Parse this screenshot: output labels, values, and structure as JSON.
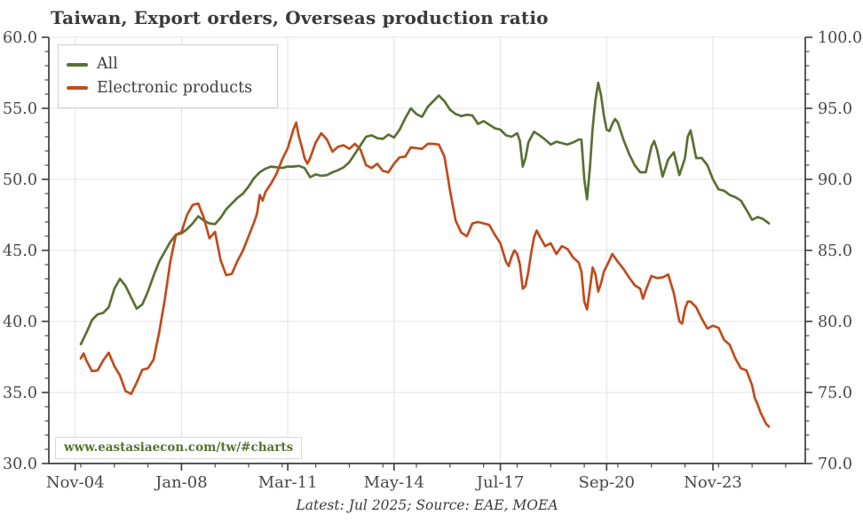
{
  "title": "Taiwan, Export orders, Overseas production ratio",
  "footer": "Latest: Jul 2025; Source: EAE, MOEA",
  "watermark": "www.eastasiaecon.com/tw/#charts",
  "colors": {
    "all_series": "#5a7033",
    "electronics_series": "#c04b1d",
    "grid": "#e3e3e3",
    "spine": "#3c3c3c",
    "tick_label": "#474747",
    "watermark_text": "#5a7033"
  },
  "chart_data": {
    "type": "line",
    "title": "Taiwan, Export orders, Overseas production ratio",
    "x_unit": "months since Jan-2005",
    "x_tick_labels": [
      "Nov-04",
      "Jan-08",
      "Mar-11",
      "May-14",
      "Jul-17",
      "Sep-20",
      "Nov-23"
    ],
    "x_tick_months": [
      -2,
      36,
      74,
      112,
      150,
      188,
      226
    ],
    "x_minor_tick_step_months": 12,
    "grid": true,
    "legend_position": "top-left",
    "left_axis": {
      "min": 30,
      "max": 60,
      "ticks": [
        30,
        35,
        40,
        45,
        50,
        55,
        60
      ],
      "minor_step": 1
    },
    "right_axis": {
      "min": 70,
      "max": 100,
      "ticks": [
        70,
        75,
        80,
        85,
        90,
        95,
        100
      ],
      "minor_step": 1
    },
    "series": [
      {
        "name": "All",
        "axis": "left",
        "color": "#5a7033",
        "points": [
          [
            0,
            38.4
          ],
          [
            2,
            39.2
          ],
          [
            4,
            40.1
          ],
          [
            6,
            40.5
          ],
          [
            8,
            40.6
          ],
          [
            10,
            41.0
          ],
          [
            12,
            42.3
          ],
          [
            14,
            43.0
          ],
          [
            16,
            42.5
          ],
          [
            18,
            41.7
          ],
          [
            20,
            40.9
          ],
          [
            22,
            41.2
          ],
          [
            24,
            42.1
          ],
          [
            26,
            43.2
          ],
          [
            28,
            44.2
          ],
          [
            30,
            44.9
          ],
          [
            32,
            45.6
          ],
          [
            34,
            46.1
          ],
          [
            36,
            46.2
          ],
          [
            38,
            46.5
          ],
          [
            40,
            46.9
          ],
          [
            42,
            47.4
          ],
          [
            44,
            47.1
          ],
          [
            46,
            46.9
          ],
          [
            48,
            46.85
          ],
          [
            50,
            47.3
          ],
          [
            52,
            47.9
          ],
          [
            54,
            48.3
          ],
          [
            56,
            48.7
          ],
          [
            58,
            49.0
          ],
          [
            60,
            49.5
          ],
          [
            62,
            50.1
          ],
          [
            64,
            50.5
          ],
          [
            66,
            50.75
          ],
          [
            68,
            50.9
          ],
          [
            70,
            50.85
          ],
          [
            72,
            50.8
          ],
          [
            74,
            50.9
          ],
          [
            76,
            50.9
          ],
          [
            78,
            50.95
          ],
          [
            80,
            50.8
          ],
          [
            82,
            50.15
          ],
          [
            84,
            50.35
          ],
          [
            86,
            50.25
          ],
          [
            88,
            50.3
          ],
          [
            90,
            50.5
          ],
          [
            92,
            50.65
          ],
          [
            94,
            50.85
          ],
          [
            96,
            51.2
          ],
          [
            98,
            51.8
          ],
          [
            100,
            52.4
          ],
          [
            102,
            53.0
          ],
          [
            104,
            53.1
          ],
          [
            106,
            52.9
          ],
          [
            108,
            52.85
          ],
          [
            110,
            53.15
          ],
          [
            112,
            52.95
          ],
          [
            114,
            53.5
          ],
          [
            116,
            54.3
          ],
          [
            118,
            55.0
          ],
          [
            120,
            54.6
          ],
          [
            122,
            54.4
          ],
          [
            124,
            55.1
          ],
          [
            126,
            55.5
          ],
          [
            128,
            55.9
          ],
          [
            130,
            55.5
          ],
          [
            132,
            54.9
          ],
          [
            134,
            54.6
          ],
          [
            136,
            54.45
          ],
          [
            138,
            54.55
          ],
          [
            140,
            54.5
          ],
          [
            142,
            53.9
          ],
          [
            144,
            54.1
          ],
          [
            146,
            53.85
          ],
          [
            148,
            53.6
          ],
          [
            150,
            53.5
          ],
          [
            152,
            53.1
          ],
          [
            154,
            53.0
          ],
          [
            156,
            53.25
          ],
          [
            157,
            52.7
          ],
          [
            158,
            50.9
          ],
          [
            159,
            51.5
          ],
          [
            160,
            52.6
          ],
          [
            162,
            53.35
          ],
          [
            164,
            53.1
          ],
          [
            166,
            52.8
          ],
          [
            168,
            52.45
          ],
          [
            170,
            52.65
          ],
          [
            172,
            52.55
          ],
          [
            174,
            52.45
          ],
          [
            176,
            52.6
          ],
          [
            178,
            52.8
          ],
          [
            179,
            52.8
          ],
          [
            180,
            50.0
          ],
          [
            181,
            48.6
          ],
          [
            182,
            50.8
          ],
          [
            183,
            53.6
          ],
          [
            184,
            55.6
          ],
          [
            185,
            56.8
          ],
          [
            186,
            55.9
          ],
          [
            187,
            54.5
          ],
          [
            188,
            53.5
          ],
          [
            189,
            53.4
          ],
          [
            190,
            53.9
          ],
          [
            191,
            54.25
          ],
          [
            192,
            54.0
          ],
          [
            194,
            52.8
          ],
          [
            196,
            51.8
          ],
          [
            198,
            51.0
          ],
          [
            200,
            50.5
          ],
          [
            202,
            50.5
          ],
          [
            204,
            52.3
          ],
          [
            205,
            52.7
          ],
          [
            206,
            52.1
          ],
          [
            208,
            50.2
          ],
          [
            210,
            51.4
          ],
          [
            212,
            51.9
          ],
          [
            214,
            50.3
          ],
          [
            216,
            51.5
          ],
          [
            217,
            53.0
          ],
          [
            218,
            53.45
          ],
          [
            220,
            51.5
          ],
          [
            222,
            51.5
          ],
          [
            224,
            51.0
          ],
          [
            226,
            50.0
          ],
          [
            228,
            49.3
          ],
          [
            230,
            49.2
          ],
          [
            232,
            48.9
          ],
          [
            234,
            48.75
          ],
          [
            236,
            48.5
          ],
          [
            238,
            47.85
          ],
          [
            240,
            47.15
          ],
          [
            242,
            47.35
          ],
          [
            244,
            47.2
          ],
          [
            246,
            46.9
          ]
        ]
      },
      {
        "name": "Electronic products",
        "axis": "left",
        "color": "#c04b1d",
        "points": [
          [
            0,
            37.4
          ],
          [
            1,
            37.75
          ],
          [
            2,
            37.25
          ],
          [
            4,
            36.5
          ],
          [
            6,
            36.55
          ],
          [
            8,
            37.25
          ],
          [
            10,
            37.8
          ],
          [
            12,
            36.85
          ],
          [
            14,
            36.2
          ],
          [
            16,
            35.1
          ],
          [
            18,
            34.9
          ],
          [
            20,
            35.7
          ],
          [
            22,
            36.6
          ],
          [
            24,
            36.7
          ],
          [
            26,
            37.3
          ],
          [
            28,
            39.2
          ],
          [
            30,
            41.5
          ],
          [
            32,
            44.2
          ],
          [
            34,
            46.1
          ],
          [
            36,
            46.3
          ],
          [
            38,
            47.5
          ],
          [
            40,
            48.2
          ],
          [
            42,
            48.3
          ],
          [
            44,
            47.3
          ],
          [
            46,
            45.85
          ],
          [
            48,
            46.3
          ],
          [
            50,
            44.3
          ],
          [
            52,
            43.25
          ],
          [
            54,
            43.35
          ],
          [
            56,
            44.25
          ],
          [
            58,
            45.0
          ],
          [
            60,
            46.0
          ],
          [
            62,
            47.0
          ],
          [
            63,
            47.6
          ],
          [
            64,
            48.9
          ],
          [
            65,
            48.5
          ],
          [
            66,
            49.1
          ],
          [
            68,
            49.7
          ],
          [
            70,
            50.4
          ],
          [
            72,
            51.4
          ],
          [
            74,
            52.2
          ],
          [
            76,
            53.5
          ],
          [
            77,
            54.0
          ],
          [
            78,
            53.0
          ],
          [
            79,
            52.3
          ],
          [
            80,
            51.5
          ],
          [
            81,
            51.1
          ],
          [
            82,
            51.5
          ],
          [
            84,
            52.6
          ],
          [
            86,
            53.25
          ],
          [
            88,
            52.8
          ],
          [
            90,
            51.95
          ],
          [
            92,
            52.3
          ],
          [
            94,
            52.4
          ],
          [
            96,
            52.15
          ],
          [
            98,
            52.5
          ],
          [
            100,
            52.1
          ],
          [
            102,
            51.0
          ],
          [
            104,
            50.8
          ],
          [
            106,
            51.1
          ],
          [
            108,
            50.6
          ],
          [
            110,
            50.5
          ],
          [
            112,
            51.1
          ],
          [
            114,
            51.55
          ],
          [
            116,
            51.6
          ],
          [
            118,
            52.25
          ],
          [
            120,
            52.2
          ],
          [
            122,
            52.15
          ],
          [
            124,
            52.5
          ],
          [
            126,
            52.5
          ],
          [
            128,
            52.45
          ],
          [
            130,
            51.6
          ],
          [
            132,
            49.2
          ],
          [
            134,
            47.1
          ],
          [
            136,
            46.25
          ],
          [
            138,
            46.0
          ],
          [
            140,
            46.9
          ],
          [
            142,
            47.0
          ],
          [
            144,
            46.9
          ],
          [
            146,
            46.8
          ],
          [
            148,
            46.1
          ],
          [
            150,
            45.5
          ],
          [
            152,
            44.2
          ],
          [
            153,
            43.9
          ],
          [
            154,
            44.55
          ],
          [
            155,
            45.0
          ],
          [
            156,
            44.75
          ],
          [
            157,
            44.0
          ],
          [
            158,
            42.3
          ],
          [
            159,
            42.5
          ],
          [
            160,
            43.5
          ],
          [
            161,
            44.8
          ],
          [
            162,
            45.9
          ],
          [
            163,
            46.4
          ],
          [
            164,
            46.0
          ],
          [
            166,
            45.3
          ],
          [
            168,
            45.5
          ],
          [
            170,
            44.75
          ],
          [
            172,
            45.3
          ],
          [
            174,
            45.1
          ],
          [
            176,
            44.5
          ],
          [
            178,
            44.15
          ],
          [
            179,
            43.5
          ],
          [
            180,
            41.4
          ],
          [
            181,
            40.85
          ],
          [
            182,
            42.3
          ],
          [
            183,
            43.8
          ],
          [
            184,
            43.3
          ],
          [
            185,
            42.1
          ],
          [
            186,
            42.7
          ],
          [
            187,
            43.5
          ],
          [
            188,
            43.9
          ],
          [
            189,
            44.3
          ],
          [
            190,
            44.75
          ],
          [
            192,
            44.2
          ],
          [
            194,
            43.7
          ],
          [
            196,
            43.1
          ],
          [
            198,
            42.55
          ],
          [
            200,
            42.3
          ],
          [
            201,
            41.6
          ],
          [
            202,
            42.2
          ],
          [
            204,
            43.2
          ],
          [
            206,
            43.05
          ],
          [
            208,
            43.1
          ],
          [
            210,
            43.3
          ],
          [
            212,
            42.0
          ],
          [
            214,
            40.0
          ],
          [
            215,
            39.85
          ],
          [
            216,
            40.9
          ],
          [
            217,
            41.4
          ],
          [
            218,
            41.4
          ],
          [
            220,
            41.0
          ],
          [
            222,
            40.2
          ],
          [
            224,
            39.5
          ],
          [
            226,
            39.7
          ],
          [
            228,
            39.55
          ],
          [
            230,
            38.7
          ],
          [
            232,
            38.35
          ],
          [
            234,
            37.4
          ],
          [
            236,
            36.7
          ],
          [
            238,
            36.55
          ],
          [
            240,
            35.5
          ],
          [
            241,
            34.6
          ],
          [
            242,
            34.15
          ],
          [
            243,
            33.6
          ],
          [
            244,
            33.2
          ],
          [
            245,
            32.8
          ],
          [
            246,
            32.6
          ]
        ]
      }
    ]
  }
}
